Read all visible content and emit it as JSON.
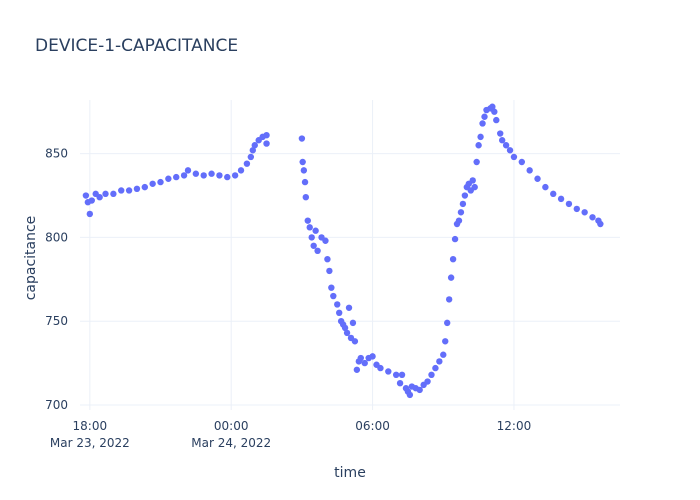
{
  "chart_data": {
    "type": "scatter",
    "title": "DEVICE-1-CAPACITANCE",
    "xlabel": "time",
    "ylabel": "capacitance",
    "x_unit": "datetime",
    "xlim": [
      "2022-03-23 17:35",
      "2022-03-24 16:30"
    ],
    "ylim": [
      697,
      882
    ],
    "grid": true,
    "legend": "none",
    "marker_color": "#636efa",
    "x_ticks": [
      {
        "value": "2022-03-23 18:00",
        "label": "18:00",
        "sublabel": "Mar 23, 2022"
      },
      {
        "value": "2022-03-24 00:00",
        "label": "00:00",
        "sublabel": "Mar 24, 2022"
      },
      {
        "value": "2022-03-24 06:00",
        "label": "06:00",
        "sublabel": ""
      },
      {
        "value": "2022-03-24 12:00",
        "label": "12:00",
        "sublabel": ""
      }
    ],
    "y_ticks": [
      700,
      750,
      800,
      850
    ],
    "points": [
      [
        "2022-03-23 17:50",
        825
      ],
      [
        "2022-03-23 17:55",
        821
      ],
      [
        "2022-03-23 18:00",
        814
      ],
      [
        "2022-03-23 18:05",
        822
      ],
      [
        "2022-03-23 18:15",
        826
      ],
      [
        "2022-03-23 18:25",
        824
      ],
      [
        "2022-03-23 18:40",
        826
      ],
      [
        "2022-03-23 19:00",
        826
      ],
      [
        "2022-03-23 19:20",
        828
      ],
      [
        "2022-03-23 19:40",
        828
      ],
      [
        "2022-03-23 20:00",
        829
      ],
      [
        "2022-03-23 20:20",
        830
      ],
      [
        "2022-03-23 20:40",
        832
      ],
      [
        "2022-03-23 21:00",
        833
      ],
      [
        "2022-03-23 21:20",
        835
      ],
      [
        "2022-03-23 21:40",
        836
      ],
      [
        "2022-03-23 22:00",
        837
      ],
      [
        "2022-03-23 22:10",
        840
      ],
      [
        "2022-03-23 22:30",
        838
      ],
      [
        "2022-03-23 22:50",
        837
      ],
      [
        "2022-03-23 23:10",
        838
      ],
      [
        "2022-03-23 23:30",
        837
      ],
      [
        "2022-03-23 23:50",
        836
      ],
      [
        "2022-03-24 00:10",
        837
      ],
      [
        "2022-03-24 00:25",
        840
      ],
      [
        "2022-03-24 00:40",
        844
      ],
      [
        "2022-03-24 00:50",
        848
      ],
      [
        "2022-03-24 00:55",
        852
      ],
      [
        "2022-03-24 01:00",
        855
      ],
      [
        "2022-03-24 01:10",
        858
      ],
      [
        "2022-03-24 01:20",
        860
      ],
      [
        "2022-03-24 01:30",
        861
      ],
      [
        "2022-03-24 01:30",
        856
      ],
      [
        "2022-03-24 03:00",
        859
      ],
      [
        "2022-03-24 03:02",
        845
      ],
      [
        "2022-03-24 03:05",
        840
      ],
      [
        "2022-03-24 03:08",
        833
      ],
      [
        "2022-03-24 03:10",
        824
      ],
      [
        "2022-03-24 03:15",
        810
      ],
      [
        "2022-03-24 03:20",
        806
      ],
      [
        "2022-03-24 03:25",
        800
      ],
      [
        "2022-03-24 03:30",
        795
      ],
      [
        "2022-03-24 03:35",
        804
      ],
      [
        "2022-03-24 03:40",
        792
      ],
      [
        "2022-03-24 03:50",
        800
      ],
      [
        "2022-03-24 04:00",
        798
      ],
      [
        "2022-03-24 04:05",
        787
      ],
      [
        "2022-03-24 04:10",
        780
      ],
      [
        "2022-03-24 04:15",
        770
      ],
      [
        "2022-03-24 04:20",
        765
      ],
      [
        "2022-03-24 04:30",
        760
      ],
      [
        "2022-03-24 04:35",
        755
      ],
      [
        "2022-03-24 04:40",
        750
      ],
      [
        "2022-03-24 04:45",
        748
      ],
      [
        "2022-03-24 04:50",
        746
      ],
      [
        "2022-03-24 04:55",
        743
      ],
      [
        "2022-03-24 05:00",
        758
      ],
      [
        "2022-03-24 05:05",
        740
      ],
      [
        "2022-03-24 05:10",
        749
      ],
      [
        "2022-03-24 05:15",
        738
      ],
      [
        "2022-03-24 05:20",
        721
      ],
      [
        "2022-03-24 05:25",
        726
      ],
      [
        "2022-03-24 05:30",
        728
      ],
      [
        "2022-03-24 05:40",
        725
      ],
      [
        "2022-03-24 05:50",
        728
      ],
      [
        "2022-03-24 06:00",
        729
      ],
      [
        "2022-03-24 06:10",
        724
      ],
      [
        "2022-03-24 06:20",
        722
      ],
      [
        "2022-03-24 06:40",
        720
      ],
      [
        "2022-03-24 07:00",
        718
      ],
      [
        "2022-03-24 07:10",
        713
      ],
      [
        "2022-03-24 07:15",
        718
      ],
      [
        "2022-03-24 07:25",
        710
      ],
      [
        "2022-03-24 07:30",
        708
      ],
      [
        "2022-03-24 07:35",
        706
      ],
      [
        "2022-03-24 07:40",
        711
      ],
      [
        "2022-03-24 07:50",
        710
      ],
      [
        "2022-03-24 08:00",
        709
      ],
      [
        "2022-03-24 08:10",
        712
      ],
      [
        "2022-03-24 08:20",
        714
      ],
      [
        "2022-03-24 08:30",
        718
      ],
      [
        "2022-03-24 08:40",
        722
      ],
      [
        "2022-03-24 08:50",
        726
      ],
      [
        "2022-03-24 09:00",
        730
      ],
      [
        "2022-03-24 09:05",
        738
      ],
      [
        "2022-03-24 09:10",
        749
      ],
      [
        "2022-03-24 09:15",
        763
      ],
      [
        "2022-03-24 09:20",
        776
      ],
      [
        "2022-03-24 09:25",
        787
      ],
      [
        "2022-03-24 09:30",
        799
      ],
      [
        "2022-03-24 09:35",
        808
      ],
      [
        "2022-03-24 09:40",
        810
      ],
      [
        "2022-03-24 09:45",
        815
      ],
      [
        "2022-03-24 09:50",
        820
      ],
      [
        "2022-03-24 09:55",
        825
      ],
      [
        "2022-03-24 10:00",
        830
      ],
      [
        "2022-03-24 10:05",
        832
      ],
      [
        "2022-03-24 10:10",
        828
      ],
      [
        "2022-03-24 10:15",
        834
      ],
      [
        "2022-03-24 10:20",
        830
      ],
      [
        "2022-03-24 10:25",
        845
      ],
      [
        "2022-03-24 10:30",
        855
      ],
      [
        "2022-03-24 10:35",
        860
      ],
      [
        "2022-03-24 10:40",
        868
      ],
      [
        "2022-03-24 10:45",
        872
      ],
      [
        "2022-03-24 10:50",
        876
      ],
      [
        "2022-03-24 11:00",
        877
      ],
      [
        "2022-03-24 11:05",
        878
      ],
      [
        "2022-03-24 11:10",
        875
      ],
      [
        "2022-03-24 11:15",
        870
      ],
      [
        "2022-03-24 11:25",
        862
      ],
      [
        "2022-03-24 11:30",
        858
      ],
      [
        "2022-03-24 11:40",
        855
      ],
      [
        "2022-03-24 11:50",
        852
      ],
      [
        "2022-03-24 12:00",
        848
      ],
      [
        "2022-03-24 12:20",
        845
      ],
      [
        "2022-03-24 12:40",
        840
      ],
      [
        "2022-03-24 13:00",
        835
      ],
      [
        "2022-03-24 13:20",
        830
      ],
      [
        "2022-03-24 13:40",
        826
      ],
      [
        "2022-03-24 14:00",
        823
      ],
      [
        "2022-03-24 14:20",
        820
      ],
      [
        "2022-03-24 14:40",
        817
      ],
      [
        "2022-03-24 15:00",
        815
      ],
      [
        "2022-03-24 15:20",
        812
      ],
      [
        "2022-03-24 15:35",
        810
      ],
      [
        "2022-03-24 15:40",
        808
      ]
    ]
  }
}
